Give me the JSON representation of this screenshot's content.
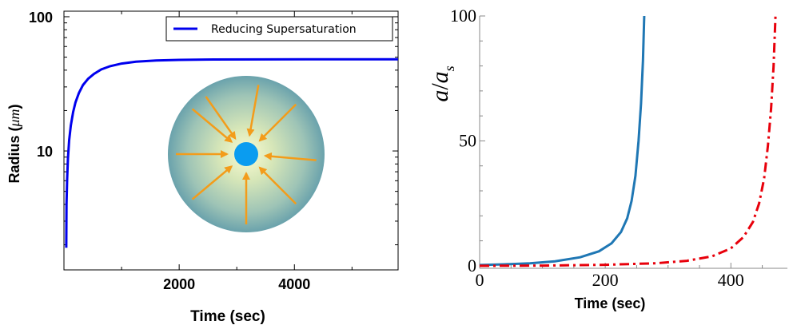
{
  "chart_data": [
    {
      "type": "line",
      "xlabel": "Time (sec)",
      "ylabel": "Radius (",
      "ylabel_unit": "μm",
      "ylabel_close": ")",
      "xlim": [
        0,
        5800
      ],
      "ylim": [
        1.3,
        110
      ],
      "y_scale": "log",
      "x_ticks": [
        2000,
        4000
      ],
      "x_tick_labels": [
        "2000",
        "4000"
      ],
      "y_ticks": [
        10,
        100
      ],
      "y_tick_labels": [
        "10",
        "100"
      ],
      "legend_position": "top-right",
      "inset": "particle-with-inward-arrows",
      "series": [
        {
          "name": "Reducing Supersaturation",
          "color": "#0000ee",
          "x": [
            40,
            45,
            55,
            70,
            90,
            120,
            160,
            200,
            260,
            330,
            420,
            520,
            650,
            800,
            1000,
            1250,
            1600,
            2000,
            2600,
            3400,
            4500,
            5800
          ],
          "y": [
            1.9,
            4.0,
            6.2,
            8.8,
            12.0,
            15.5,
            19.5,
            23.0,
            27.0,
            31.0,
            34.5,
            37.5,
            40.5,
            42.8,
            44.8,
            46.2,
            47.2,
            47.7,
            48.0,
            48.1,
            48.2,
            48.2
          ]
        }
      ]
    },
    {
      "type": "line",
      "xlabel": "Time (sec)",
      "ylabel_main": "a",
      "ylabel_sep": "/",
      "ylabel_sub_base": "a",
      "ylabel_sub": "s",
      "xlim": [
        0,
        490
      ],
      "ylim": [
        -1,
        100
      ],
      "x_ticks": [
        0,
        200,
        400
      ],
      "x_tick_labels": [
        "0",
        "200",
        "400"
      ],
      "y_ticks": [
        0,
        50,
        100
      ],
      "y_tick_labels": [
        "0",
        "50",
        "100"
      ],
      "series": [
        {
          "color": "#1f77b4",
          "style": "solid",
          "x": [
            0,
            40,
            80,
            120,
            160,
            190,
            210,
            225,
            235,
            242,
            248,
            253,
            257,
            260,
            262
          ],
          "y": [
            0.3,
            0.6,
            1.0,
            1.8,
            3.4,
            5.8,
            9.0,
            13.5,
            19.0,
            26.0,
            36.0,
            50.0,
            65.0,
            82.0,
            100.0
          ]
        },
        {
          "color": "#e8000b",
          "style": "dashdot",
          "x": [
            0,
            100,
            200,
            280,
            330,
            370,
            400,
            420,
            435,
            445,
            453,
            459,
            464,
            468,
            471
          ],
          "y": [
            0.0,
            0.1,
            0.4,
            1.0,
            2.0,
            3.8,
            7.0,
            11.5,
            17.5,
            25.0,
            35.0,
            48.0,
            63.0,
            80.0,
            100.0
          ]
        }
      ]
    }
  ]
}
